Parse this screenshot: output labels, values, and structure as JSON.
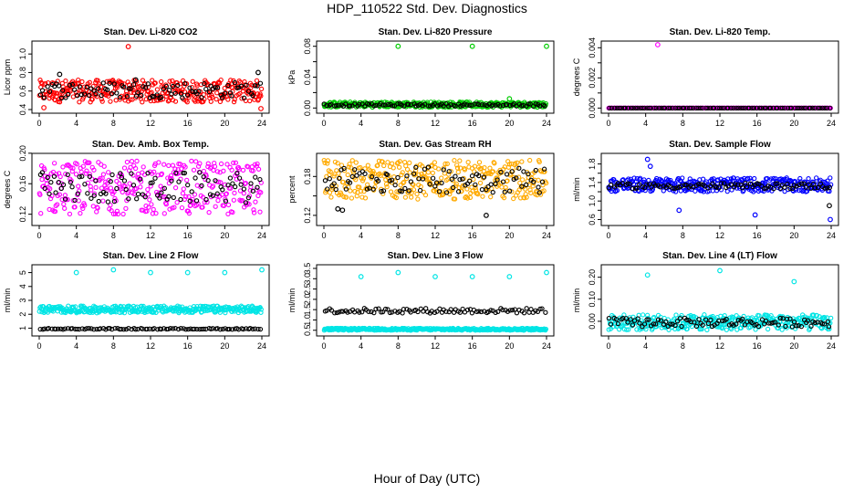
{
  "figure": {
    "title": "HDP_110522  Std. Dev. Diagnostics",
    "xlabel": "Hour of Day (UTC)"
  },
  "chart_data": [
    {
      "type": "scatter",
      "title": "Stan. Dev. Li-820 CO2",
      "ylabel": "Licor ppm",
      "xlim": [
        0,
        24
      ],
      "ylim": [
        0.4,
        1.1
      ],
      "yticks": [
        0.4,
        0.6,
        0.8,
        1.0
      ],
      "ytick_labels": [
        "0.4",
        "0.6",
        "0.8",
        "1.0"
      ],
      "xticks": [
        0,
        4,
        8,
        12,
        16,
        20,
        24
      ],
      "grid": false,
      "series": [
        {
          "color": "#ff0000",
          "band": [
            0.48,
            0.72
          ],
          "outliers": [
            [
              9.6,
              1.08
            ],
            [
              0.5,
              0.42
            ],
            [
              1.6,
              0.58
            ],
            [
              23.9,
              0.41
            ]
          ]
        },
        {
          "color": "#000000",
          "band": [
            0.5,
            0.72
          ],
          "outliers": [
            [
              23.6,
              0.8
            ],
            [
              2.2,
              0.78
            ],
            [
              10.4,
              0.72
            ]
          ]
        }
      ]
    },
    {
      "type": "scatter",
      "title": "Stan. Dev. Li-820 Pressure",
      "ylabel": "kPa",
      "xlim": [
        0,
        24
      ],
      "ylim": [
        -0.002,
        0.082
      ],
      "yticks": [
        0,
        0.02,
        0.04,
        0.06,
        0.08
      ],
      "ytick_labels": [
        "0.00",
        "",
        "0.04",
        "",
        "0.08"
      ],
      "xticks": [
        0,
        4,
        8,
        12,
        16,
        20,
        24
      ],
      "grid": false,
      "series": [
        {
          "color": "#00cc00",
          "band": [
            0.001,
            0.008
          ],
          "outliers": [
            [
              8,
              0.08
            ],
            [
              16,
              0.08
            ],
            [
              24,
              0.08
            ],
            [
              20,
              0.012
            ]
          ]
        },
        {
          "color": "#000000",
          "band": [
            0.002,
            0.006
          ],
          "outliers": []
        }
      ]
    },
    {
      "type": "scatter",
      "title": "Stan. Dev. Li-820 Temp.",
      "ylabel": "degrees C",
      "xlim": [
        0,
        24
      ],
      "ylim": [
        -0.0001,
        0.0042
      ],
      "yticks": [
        0,
        0.001,
        0.002,
        0.003,
        0.004
      ],
      "ytick_labels": [
        "0.000",
        "",
        "0.002",
        "",
        "0.004"
      ],
      "xticks": [
        0,
        4,
        8,
        12,
        16,
        20,
        24
      ],
      "grid": false,
      "series": [
        {
          "color": "#ff00ff",
          "band": [
            0,
            0
          ],
          "outliers": [
            [
              5.3,
              0.0042
            ]
          ]
        },
        {
          "color": "#000000",
          "band": [
            0,
            0
          ],
          "outliers": []
        }
      ]
    },
    {
      "type": "scatter",
      "title": "Stan. Dev. Amb. Box Temp.",
      "ylabel": "degrees C",
      "xlim": [
        0,
        24
      ],
      "ylim": [
        0.11,
        0.195
      ],
      "yticks": [
        0.12,
        0.16,
        0.2
      ],
      "ytick_labels": [
        "0.12",
        "0.16",
        "0.20"
      ],
      "xticks": [
        0,
        4,
        8,
        12,
        16,
        20,
        24
      ],
      "grid": false,
      "series": [
        {
          "color": "#ff00ff",
          "band": [
            0.12,
            0.19
          ],
          "outliers": []
        },
        {
          "color": "#000000",
          "band": [
            0.13,
            0.18
          ],
          "outliers": []
        }
      ]
    },
    {
      "type": "scatter",
      "title": "Stan. Dev. Gas Stream RH",
      "ylabel": "percent",
      "xlim": [
        0,
        24
      ],
      "ylim": [
        0.11,
        0.21
      ],
      "yticks": [
        0.12,
        0.15,
        0.18
      ],
      "ytick_labels": [
        "0.12",
        "",
        "0.18"
      ],
      "xticks": [
        0,
        4,
        8,
        12,
        16,
        20,
        24
      ],
      "grid": false,
      "series": [
        {
          "color": "#ffaa00",
          "band": [
            0.145,
            0.205
          ],
          "outliers": []
        },
        {
          "color": "#000000",
          "band": [
            0.15,
            0.2
          ],
          "outliers": [
            [
              1.5,
              0.13
            ],
            [
              2,
              0.128
            ],
            [
              17.5,
              0.12
            ]
          ]
        }
      ]
    },
    {
      "type": "scatter",
      "title": "Stan. Dev. Sample Flow",
      "ylabel": "ml/min",
      "xlim": [
        0,
        24
      ],
      "ylim": [
        0.55,
        1.95
      ],
      "yticks": [
        0.6,
        0.8,
        1.0,
        1.2,
        1.4,
        1.6,
        1.8
      ],
      "ytick_labels": [
        "0.6",
        "",
        "1.0",
        "",
        "1.4",
        "",
        "1.8"
      ],
      "xticks": [
        0,
        4,
        8,
        12,
        16,
        20,
        24
      ],
      "grid": false,
      "series": [
        {
          "color": "#0000ff",
          "band": [
            1.2,
            1.5
          ],
          "outliers": [
            [
              4.2,
              1.9
            ],
            [
              23.9,
              0.6
            ],
            [
              15.8,
              0.7
            ],
            [
              7.6,
              0.8
            ],
            [
              4.5,
              1.75
            ]
          ]
        },
        {
          "color": "#000000",
          "band": [
            1.25,
            1.4
          ],
          "outliers": [
            [
              23.8,
              0.9
            ]
          ]
        }
      ]
    },
    {
      "type": "scatter",
      "title": "Stan. Dev. Line 2 Flow",
      "ylabel": "ml/min",
      "xlim": [
        0,
        24
      ],
      "ylim": [
        0.7,
        5.3
      ],
      "yticks": [
        1,
        2,
        3,
        4,
        5
      ],
      "ytick_labels": [
        "1",
        "2",
        "3",
        "4",
        "5"
      ],
      "xticks": [
        0,
        4,
        8,
        12,
        16,
        20,
        24
      ],
      "grid": false,
      "series": [
        {
          "color": "#00e5e5",
          "band": [
            2.1,
            2.6
          ],
          "outliers": [
            [
              4,
              5
            ],
            [
              8,
              5.2
            ],
            [
              12,
              5
            ],
            [
              16,
              5
            ],
            [
              20,
              5
            ],
            [
              24,
              5.2
            ]
          ]
        },
        {
          "color": "#000000",
          "band": [
            0.9,
            1.0
          ],
          "outliers": []
        }
      ]
    },
    {
      "type": "scatter",
      "title": "Stan. Dev. Line 3 Flow",
      "ylabel": "ml/min",
      "xlim": [
        0,
        24
      ],
      "ylim": [
        0.4,
        3.5
      ],
      "yticks": [
        0.5,
        1,
        1.5,
        2,
        2.5,
        3,
        3.5
      ],
      "ytick_labels": [
        "0.5",
        "1.0",
        "1.5",
        "2.0",
        "2.5",
        "3.0",
        "3.5"
      ],
      "xticks": [
        0,
        4,
        8,
        12,
        16,
        20,
        24
      ],
      "grid": false,
      "series": [
        {
          "color": "#00e5e5",
          "band": [
            0.5,
            0.6
          ],
          "outliers": [
            [
              4,
              3.1
            ],
            [
              8,
              3.3
            ],
            [
              12,
              3.1
            ],
            [
              16,
              3.1
            ],
            [
              20,
              3.1
            ],
            [
              24,
              3.3
            ]
          ]
        },
        {
          "color": "#000000",
          "band": [
            1.3,
            1.6
          ],
          "outliers": []
        }
      ]
    },
    {
      "type": "scatter",
      "title": "Stan. Dev. Line 4 (LT) Flow",
      "ylabel": "ml/min",
      "xlim": [
        0,
        24
      ],
      "ylim": [
        -0.05,
        0.24
      ],
      "yticks": [
        0,
        0.1,
        0.2
      ],
      "ytick_labels": [
        "0.00",
        "0.10",
        "0.20"
      ],
      "xticks": [
        0,
        4,
        8,
        12,
        16,
        20,
        24
      ],
      "grid": false,
      "series": [
        {
          "color": "#00e5e5",
          "band": [
            -0.04,
            0.03
          ],
          "outliers": [
            [
              4.2,
              0.21
            ],
            [
              12,
              0.23
            ],
            [
              20,
              0.18
            ]
          ]
        },
        {
          "color": "#000000",
          "band": [
            -0.03,
            0.02
          ],
          "outliers": []
        }
      ]
    }
  ]
}
